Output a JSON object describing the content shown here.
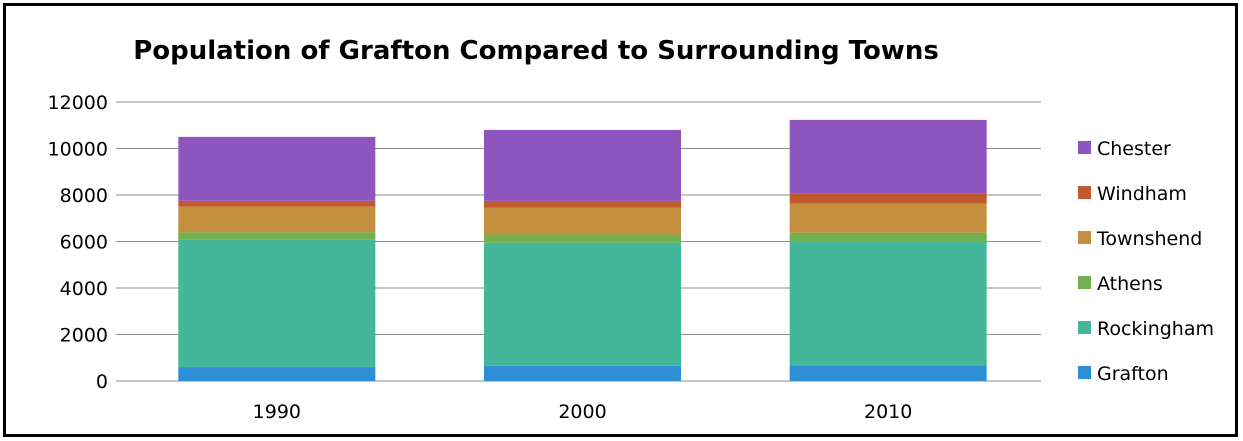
{
  "chart_data": {
    "type": "bar",
    "stacked": true,
    "title": "Population of Grafton Compared to Surrounding Towns",
    "xlabel": "",
    "ylabel": "",
    "categories": [
      "1990",
      "2000",
      "2010"
    ],
    "ylim": [
      0,
      12000
    ],
    "yticks": [
      0,
      2000,
      4000,
      6000,
      8000,
      10000,
      12000
    ],
    "grid": true,
    "legend_position": "right",
    "series": [
      {
        "name": "Grafton",
        "color": "#2E8FD6",
        "values": [
          600,
          650,
          680
        ]
      },
      {
        "name": "Rockingham",
        "color": "#44B69A",
        "values": [
          5500,
          5300,
          5300
        ]
      },
      {
        "name": "Athens",
        "color": "#74B04F",
        "values": [
          300,
          350,
          400
        ]
      },
      {
        "name": "Townshend",
        "color": "#C4903F",
        "values": [
          1100,
          1150,
          1250
        ]
      },
      {
        "name": "Windham",
        "color": "#C05A2E",
        "values": [
          250,
          300,
          450
        ]
      },
      {
        "name": "Chester",
        "color": "#8E55BE",
        "values": [
          2750,
          3050,
          3150
        ]
      }
    ]
  }
}
